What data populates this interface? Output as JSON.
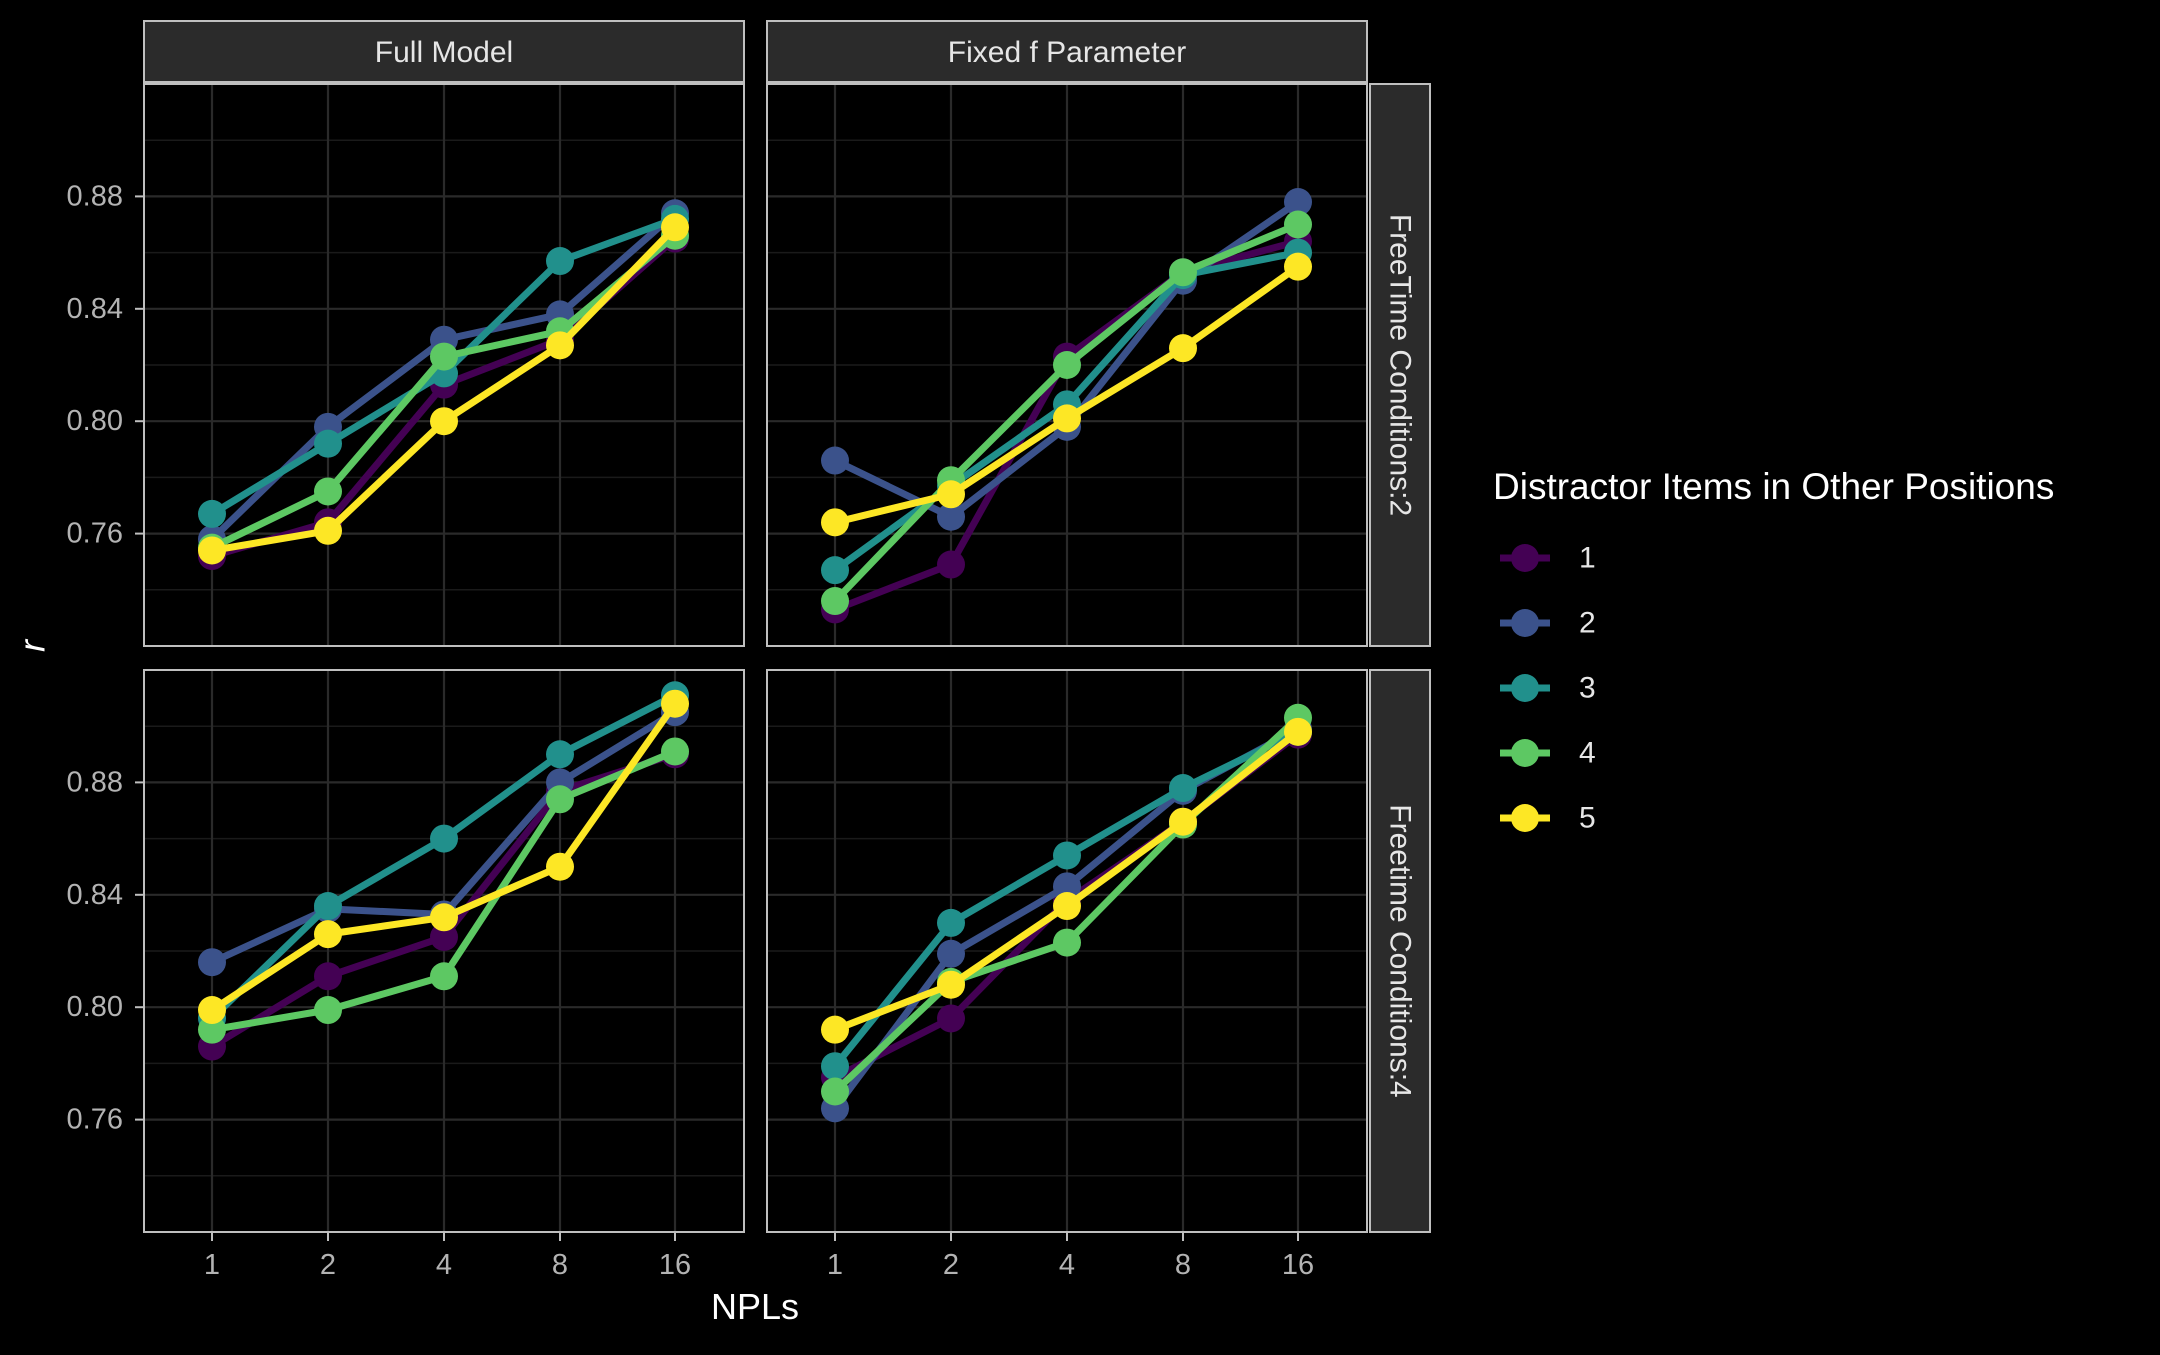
{
  "chart_data": {
    "type": "line",
    "xlabel": "NPLs",
    "ylabel": "r",
    "x": [
      "1",
      "2",
      "4",
      "8",
      "16"
    ],
    "ylim": [
      0.72,
      0.92
    ],
    "y_ticks": [
      "0.76",
      "0.80",
      "0.84",
      "0.88"
    ],
    "grid": true,
    "legend_title": "Distractor Items in Other Positions",
    "legend_position": "right",
    "col_strips": [
      "Full Model",
      "Fixed f Parameter"
    ],
    "row_strips": [
      "FreeTime Conditions:2",
      "Freetime Conditions:4"
    ],
    "series_names": [
      "1",
      "2",
      "3",
      "4",
      "5"
    ],
    "series_colors": [
      "#440154",
      "#3B528B",
      "#21908C",
      "#5DC863",
      "#FDE725"
    ],
    "panels": [
      {
        "col": "Full Model",
        "row": "FreeTime Conditions:2",
        "series": [
          {
            "name": "1",
            "values": [
              0.752,
              0.764,
              0.813,
              0.829,
              0.865
            ]
          },
          {
            "name": "2",
            "values": [
              0.758,
              0.798,
              0.829,
              0.838,
              0.874
            ]
          },
          {
            "name": "3",
            "values": [
              0.767,
              0.792,
              0.817,
              0.857,
              0.872
            ]
          },
          {
            "name": "4",
            "values": [
              0.755,
              0.775,
              0.823,
              0.832,
              0.866
            ]
          },
          {
            "name": "5",
            "values": [
              0.754,
              0.761,
              0.8,
              0.827,
              0.869
            ]
          }
        ]
      },
      {
        "col": "Fixed f Parameter",
        "row": "FreeTime Conditions:2",
        "series": [
          {
            "name": "1",
            "values": [
              0.733,
              0.749,
              0.823,
              0.853,
              0.864
            ]
          },
          {
            "name": "2",
            "values": [
              0.786,
              0.766,
              0.798,
              0.85,
              0.878
            ]
          },
          {
            "name": "3",
            "values": [
              0.747,
              0.777,
              0.806,
              0.852,
              0.86
            ]
          },
          {
            "name": "4",
            "values": [
              0.736,
              0.779,
              0.82,
              0.853,
              0.87
            ]
          },
          {
            "name": "5",
            "values": [
              0.764,
              0.774,
              0.801,
              0.826,
              0.855
            ]
          }
        ]
      },
      {
        "col": "Full Model",
        "row": "Freetime Conditions:4",
        "series": [
          {
            "name": "1",
            "values": [
              0.786,
              0.811,
              0.825,
              0.877,
              0.89
            ]
          },
          {
            "name": "2",
            "values": [
              0.816,
              0.835,
              0.833,
              0.88,
              0.905
            ]
          },
          {
            "name": "3",
            "values": [
              0.796,
              0.836,
              0.86,
              0.89,
              0.911
            ]
          },
          {
            "name": "4",
            "values": [
              0.792,
              0.799,
              0.811,
              0.874,
              0.891
            ]
          },
          {
            "name": "5",
            "values": [
              0.799,
              0.826,
              0.832,
              0.85,
              0.908
            ]
          }
        ]
      },
      {
        "col": "Fixed f Parameter",
        "row": "Freetime Conditions:4",
        "series": [
          {
            "name": "1",
            "values": [
              0.775,
              0.796,
              0.838,
              0.866,
              0.897
            ]
          },
          {
            "name": "2",
            "values": [
              0.764,
              0.819,
              0.843,
              0.877,
              0.899
            ]
          },
          {
            "name": "3",
            "values": [
              0.779,
              0.83,
              0.854,
              0.878,
              0.898
            ]
          },
          {
            "name": "4",
            "values": [
              0.77,
              0.809,
              0.823,
              0.865,
              0.903
            ]
          },
          {
            "name": "5",
            "values": [
              0.792,
              0.808,
              0.836,
              0.866,
              0.898
            ]
          }
        ]
      }
    ]
  }
}
